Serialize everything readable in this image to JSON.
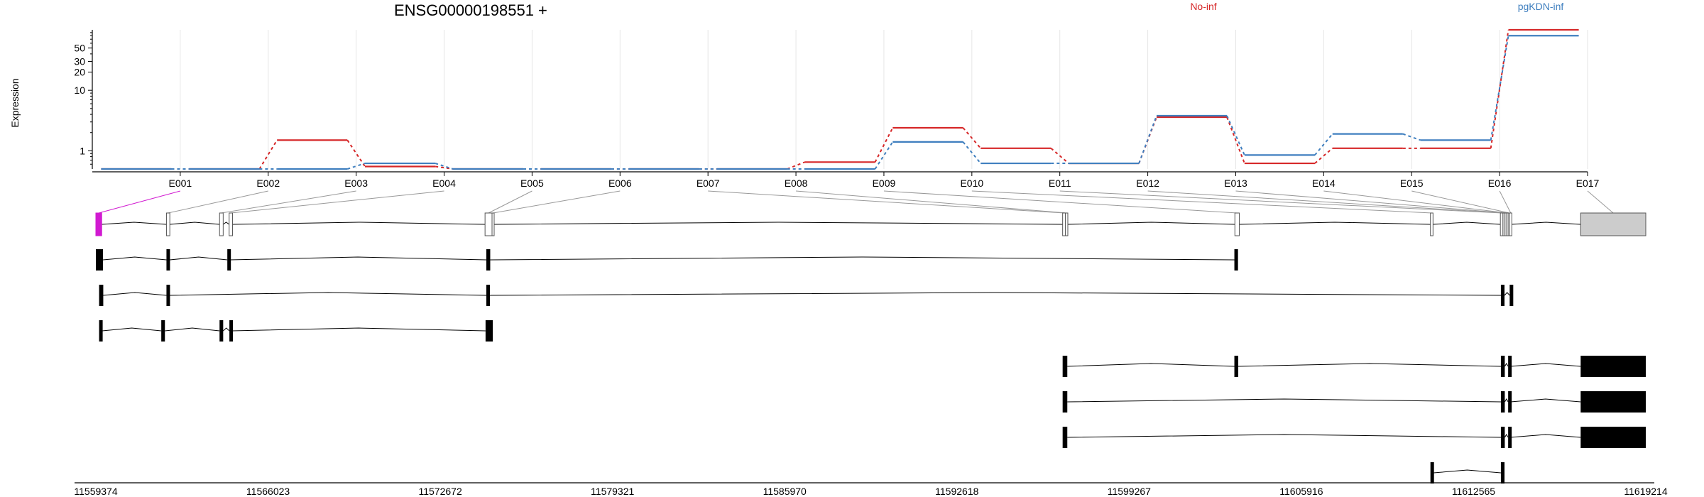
{
  "chart_data": {
    "type": "line",
    "title": "ENSG00000198551 +",
    "ylabel": "Expression",
    "y_scale": "log",
    "y_ticks": [
      "1",
      "10",
      "20",
      "30",
      "50"
    ],
    "y_tick_values": [
      1,
      10,
      20,
      30,
      50
    ],
    "categories": [
      "E001",
      "E002",
      "E003",
      "E004",
      "E005",
      "E006",
      "E007",
      "E008",
      "E009",
      "E010",
      "E011",
      "E012",
      "E013",
      "E014",
      "E015",
      "E016",
      "E017"
    ],
    "series": [
      {
        "name": "No-inf",
        "color": "#d62728",
        "values": [
          0.5,
          0.5,
          1.5,
          0.55,
          0.5,
          0.5,
          0.5,
          0.5,
          0.65,
          2.4,
          1.1,
          0.62,
          3.6,
          0.62,
          1.1,
          1.1,
          100
        ]
      },
      {
        "name": "pgKDN-inf",
        "color": "#3f7fbf",
        "values": [
          0.5,
          0.5,
          0.5,
          0.62,
          0.5,
          0.5,
          0.5,
          0.5,
          0.5,
          1.4,
          0.62,
          0.62,
          3.8,
          0.85,
          1.9,
          1.5,
          80
        ]
      }
    ],
    "genome_axis": {
      "start": 11559374,
      "end": 11619214,
      "ticks": [
        "11559374",
        "11566023",
        "11572672",
        "11579321",
        "11585970",
        "11592618",
        "11599267",
        "11605916",
        "11612565",
        "11619214"
      ]
    },
    "gene_model": {
      "exons": [
        {
          "id": "E001",
          "start": 11559374,
          "end": 11559600,
          "highlight": true
        },
        {
          "id": "E002",
          "start": 11562100,
          "end": 11562230
        },
        {
          "id": "E003",
          "start": 11564150,
          "end": 11564290
        },
        {
          "id": "E004",
          "start": 11564520,
          "end": 11564650
        },
        {
          "id": "E005",
          "start": 11574400,
          "end": 11574670
        },
        {
          "id": "E006",
          "start": 11574670,
          "end": 11574750
        },
        {
          "id": "E007",
          "start": 11596700,
          "end": 11596810
        },
        {
          "id": "E008",
          "start": 11596810,
          "end": 11596900
        },
        {
          "id": "E009",
          "start": 11603350,
          "end": 11603520
        },
        {
          "id": "E010",
          "start": 11610900,
          "end": 11611000
        },
        {
          "id": "E011",
          "start": 11613600,
          "end": 11613700
        },
        {
          "id": "E012",
          "start": 11613700,
          "end": 11613760
        },
        {
          "id": "E013",
          "start": 11613760,
          "end": 11613820
        },
        {
          "id": "E014",
          "start": 11613820,
          "end": 11613880
        },
        {
          "id": "E015",
          "start": 11613900,
          "end": 11613960
        },
        {
          "id": "E016",
          "start": 11613960,
          "end": 11614020
        },
        {
          "id": "E017",
          "start": 11616700,
          "end": 11619214
        }
      ]
    },
    "transcripts": [
      {
        "exons": [
          [
            11559374,
            11559650
          ],
          [
            11562100,
            11562230
          ],
          [
            11564450,
            11564530
          ],
          [
            11574450,
            11574600
          ],
          [
            11603330,
            11603470
          ]
        ]
      },
      {
        "exons": [
          [
            11559500,
            11559660
          ],
          [
            11562100,
            11562230
          ],
          [
            11574450,
            11574580
          ],
          [
            11613620,
            11613760
          ],
          [
            11613960,
            11614010
          ]
        ]
      },
      {
        "exons": [
          [
            11559500,
            11559620
          ],
          [
            11561900,
            11562040
          ],
          [
            11564150,
            11564290
          ],
          [
            11564530,
            11564620
          ],
          [
            11574420,
            11574700
          ]
        ]
      },
      {
        "exons": [
          [
            11596700,
            11596880
          ],
          [
            11603330,
            11603480
          ],
          [
            11613620,
            11613770
          ],
          [
            11613900,
            11613990
          ],
          [
            11616700,
            11619214
          ]
        ]
      },
      {
        "exons": [
          [
            11596700,
            11596880
          ],
          [
            11613620,
            11613770
          ],
          [
            11613900,
            11613990
          ],
          [
            11616700,
            11619214
          ]
        ]
      },
      {
        "exons": [
          [
            11596700,
            11596880
          ],
          [
            11613620,
            11613770
          ],
          [
            11613900,
            11613990
          ],
          [
            11616700,
            11619214
          ]
        ]
      },
      {
        "exons": [
          [
            11610900,
            11611020
          ],
          [
            11613620,
            11613760
          ]
        ]
      }
    ],
    "grid": true,
    "legend_position": "top-right"
  }
}
